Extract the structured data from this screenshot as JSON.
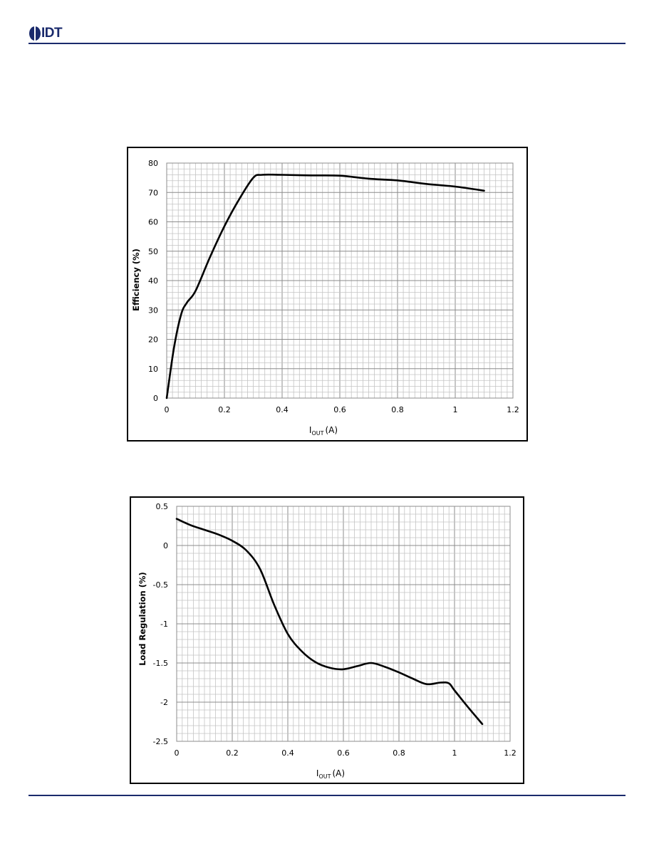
{
  "header": {
    "logo_text": "IDT",
    "colors": {
      "brand": "#1a2a6c"
    }
  },
  "chart_data": [
    {
      "type": "line",
      "title": "",
      "xlabel_main": "I",
      "xlabel_sub": "OUT",
      "xlabel_suffix": "(A)",
      "ylabel": "Efficiency (%)",
      "xlim": [
        0,
        1.2
      ],
      "ylim": [
        0,
        80
      ],
      "x_ticks": [
        "0",
        "0.2",
        "0.4",
        "0.6",
        "0.8",
        "1",
        "1.2"
      ],
      "y_ticks": [
        "0",
        "10",
        "20",
        "30",
        "40",
        "50",
        "60",
        "70",
        "80"
      ],
      "grid": true,
      "legend": "none",
      "series": [
        {
          "x": [
            0,
            0.025,
            0.05,
            0.07,
            0.1,
            0.15,
            0.2,
            0.25,
            0.3,
            0.33,
            0.4,
            0.5,
            0.6,
            0.7,
            0.8,
            0.9,
            1.0,
            1.1
          ],
          "values": [
            0,
            17,
            28.5,
            32.5,
            36.5,
            48,
            58.5,
            67.5,
            75,
            76,
            76,
            75.8,
            75.7,
            74.7,
            74.1,
            72.9,
            72,
            70.6
          ]
        }
      ]
    },
    {
      "type": "line",
      "title": "",
      "xlabel_main": "I",
      "xlabel_sub": "OUT",
      "xlabel_suffix": "(A)",
      "ylabel": "Load Regulation  (%)",
      "xlim": [
        0,
        1.2
      ],
      "ylim": [
        -2.5,
        0.5
      ],
      "x_ticks": [
        "0",
        "0.2",
        "0.4",
        "0.6",
        "0.8",
        "1",
        "1.2"
      ],
      "y_ticks": [
        "-2.5",
        "-2",
        "-1.5",
        "-1",
        "-0.5",
        "0",
        "0.5"
      ],
      "grid": true,
      "legend": "none",
      "series": [
        {
          "x": [
            0,
            0.05,
            0.1,
            0.15,
            0.2,
            0.25,
            0.3,
            0.35,
            0.4,
            0.45,
            0.5,
            0.55,
            0.6,
            0.65,
            0.7,
            0.75,
            0.8,
            0.85,
            0.9,
            0.95,
            0.98,
            1.0,
            1.05,
            1.1
          ],
          "values": [
            0.34,
            0.26,
            0.2,
            0.14,
            0.06,
            -0.06,
            -0.3,
            -0.75,
            -1.13,
            -1.35,
            -1.49,
            -1.56,
            -1.58,
            -1.54,
            -1.5,
            -1.55,
            -1.62,
            -1.7,
            -1.77,
            -1.75,
            -1.76,
            -1.85,
            -2.07,
            -2.28
          ]
        }
      ]
    }
  ]
}
